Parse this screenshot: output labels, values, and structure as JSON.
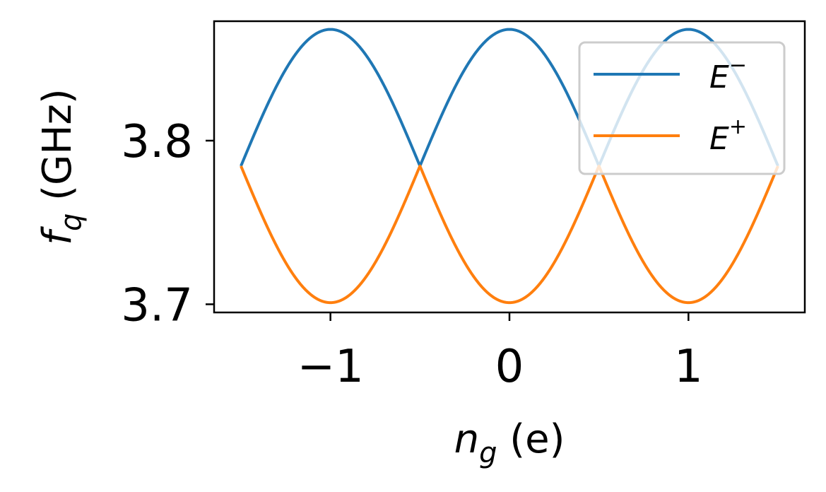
{
  "chart_data": {
    "type": "line",
    "title": "",
    "xlabel": "n_g (e)",
    "ylabel": "f_q (GHz)",
    "xlabel_parts": {
      "symbol": "n",
      "subscript": "g",
      "unit": " (e)"
    },
    "ylabel_parts": {
      "symbol": "f",
      "subscript": "q",
      "unit": " (GHz)"
    },
    "xlim": [
      -1.65,
      1.65
    ],
    "ylim": [
      3.695,
      3.873
    ],
    "xticks": [
      -1,
      0,
      1
    ],
    "xtick_labels": [
      "−1",
      "0",
      "1"
    ],
    "yticks": [
      3.7,
      3.8
    ],
    "ytick_labels": [
      "3.7",
      "3.8"
    ],
    "grid": false,
    "legend_position": "upper-right",
    "x_range": [
      -1.5,
      1.5
    ],
    "series": [
      {
        "name": "E⁻",
        "name_base": "E",
        "name_sup": "−",
        "color": "#1f77b4",
        "model": "upper",
        "center": 3.7845,
        "amplitude": 0.0835
      },
      {
        "name": "E⁺",
        "name_base": "E",
        "name_sup": "+",
        "color": "#ff7f0e",
        "model": "lower",
        "center": 3.7845,
        "amplitude": 0.0835
      }
    ]
  }
}
